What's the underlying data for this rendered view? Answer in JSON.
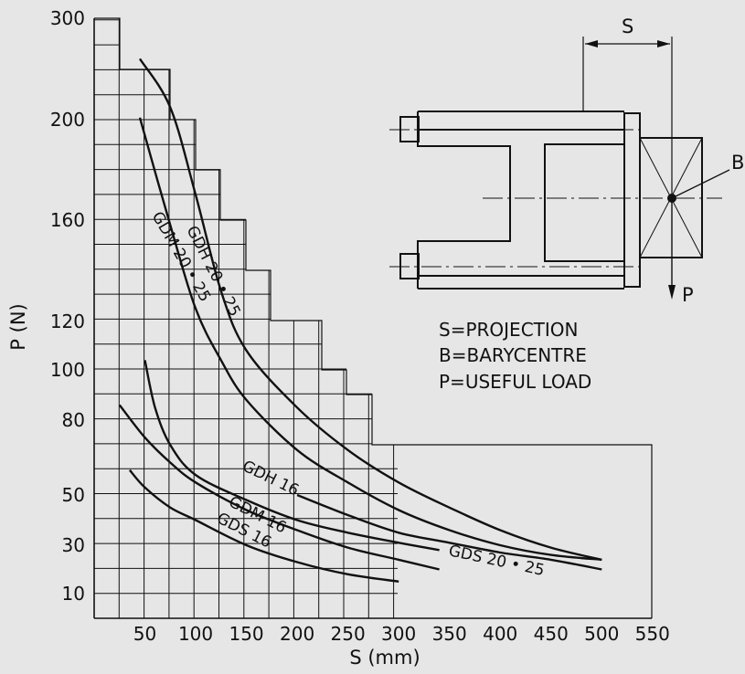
{
  "chart_data": {
    "type": "line",
    "xlabel": "S (mm)",
    "ylabel": "P (N)",
    "x_ticks": [
      "50",
      "100",
      "150",
      "200",
      "250",
      "300",
      "350",
      "400",
      "450",
      "500",
      "550"
    ],
    "y_ticks": [
      "10",
      "30",
      "50",
      "80",
      "100",
      "120",
      "160",
      "200",
      "300"
    ],
    "grid": true,
    "series": [
      {
        "name": "GDH 20 • 25",
        "x": [
          45,
          75,
          100,
          125,
          150,
          200,
          250,
          300,
          350,
          400,
          450,
          500
        ],
        "y": [
          260,
          212,
          170,
          132,
          108,
          85,
          68,
          55,
          45,
          36,
          29,
          24
        ]
      },
      {
        "name": "GDM 20 • 25",
        "x": [
          45,
          75,
          100,
          125,
          150,
          200,
          250,
          300,
          350,
          400,
          450,
          500
        ],
        "y": [
          202,
          158,
          125,
          104,
          88,
          68,
          55,
          44,
          36,
          30,
          26,
          24
        ]
      },
      {
        "name": "GDS 20 • 25",
        "x": [
          200,
          250,
          300,
          350,
          400,
          450,
          500
        ],
        "y": [
          50,
          42,
          35,
          31,
          27,
          24,
          20
        ]
      },
      {
        "name": "GDH 16",
        "x": [
          50,
          60,
          75,
          100,
          150,
          200,
          250,
          300,
          340
        ],
        "y": [
          104,
          85,
          70,
          58,
          48,
          40,
          35,
          31,
          28
        ]
      },
      {
        "name": "GDM 16",
        "x": [
          25,
          50,
          75,
          100,
          150,
          200,
          250,
          300,
          340
        ],
        "y": [
          86,
          73,
          63,
          55,
          44,
          36,
          29,
          24,
          20
        ]
      },
      {
        "name": "GDS 16",
        "x": [
          35,
          50,
          75,
          100,
          150,
          200,
          250,
          300
        ],
        "y": [
          60,
          53,
          45,
          40,
          30,
          23,
          18,
          15
        ]
      }
    ]
  },
  "diagram": {
    "s_label": "S",
    "b_label": "B",
    "p_label": "P"
  },
  "legend_lines": [
    "S=PROJECTION",
    "B=BARYCENTRE",
    "P=USEFUL LOAD"
  ]
}
